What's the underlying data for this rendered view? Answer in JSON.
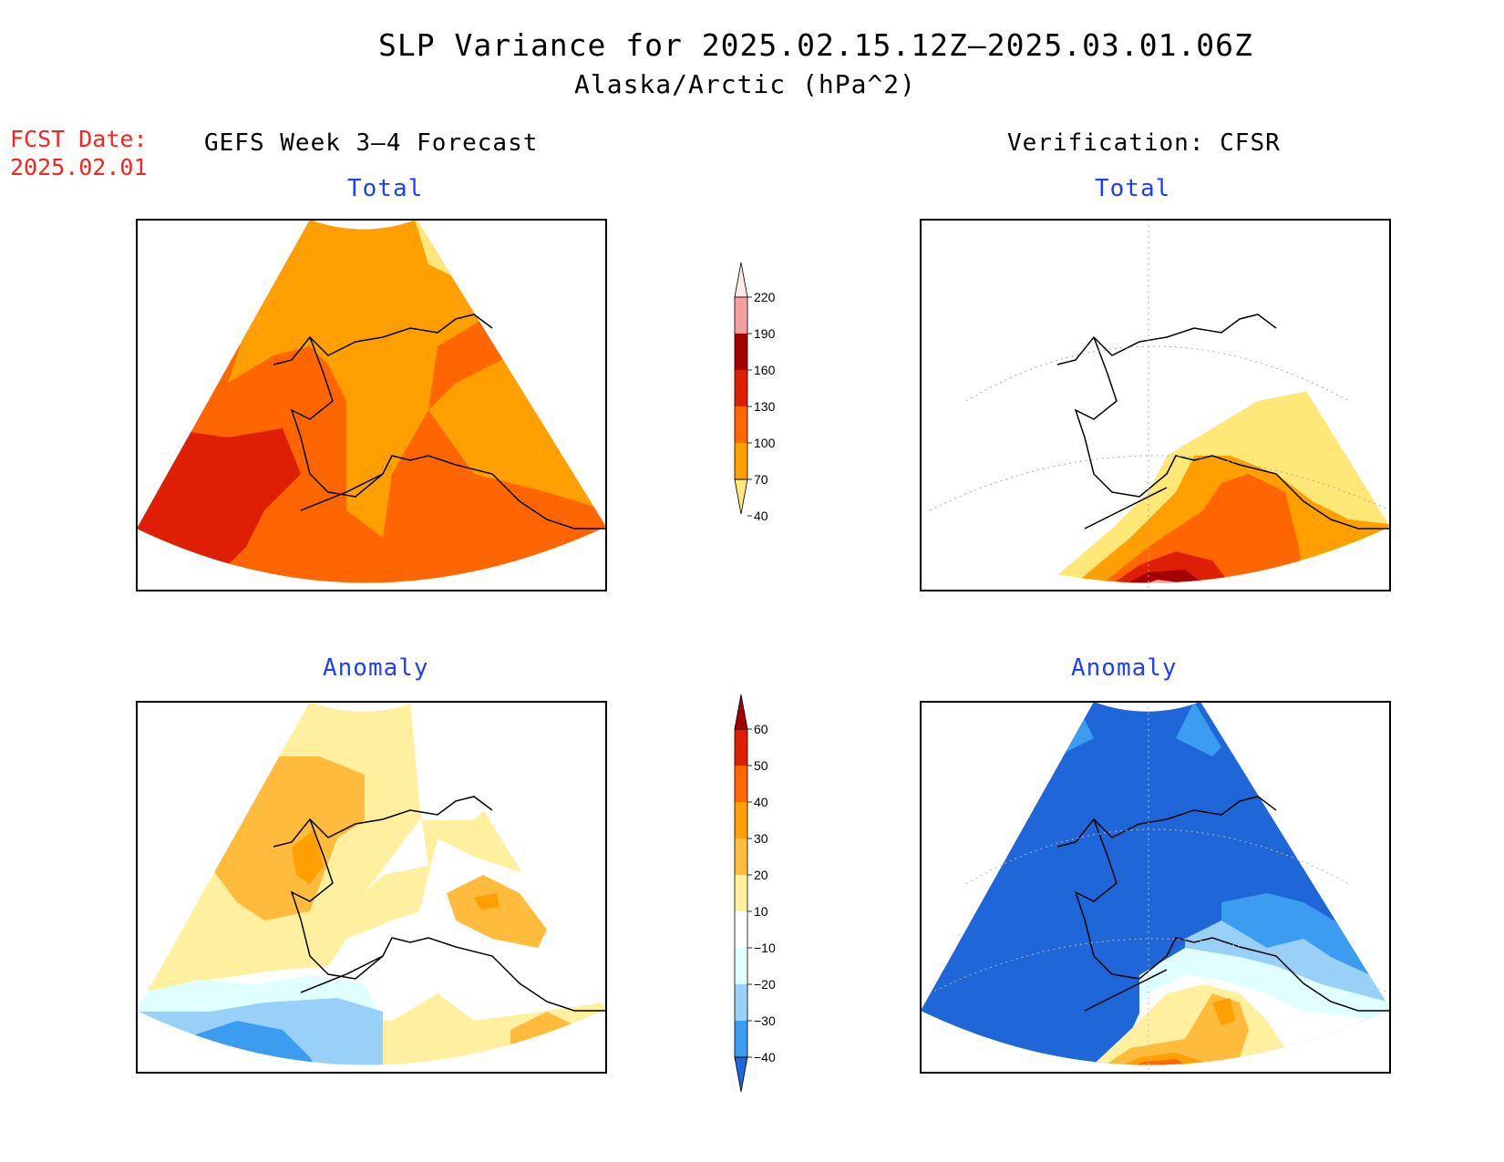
{
  "title": "SLP Variance for 2025.02.15.12Z–2025.03.01.06Z",
  "subtitle": "Alaska/Arctic (hPa^2)",
  "fcst_date_label": "FCST Date:",
  "fcst_date_value": "2025.02.01",
  "left_column_title": "GEFS Week 3–4 Forecast",
  "right_column_title": "Verification: CFSR",
  "panels": {
    "top_left": "Total",
    "top_right": "Total",
    "bottom_left": "Anomaly",
    "bottom_right": "Anomaly"
  },
  "colorbar_total": {
    "ticks": [
      "220",
      "190",
      "160",
      "130",
      "100",
      "70",
      "40"
    ],
    "colors": [
      "#fde9e6",
      "#f2a0a0",
      "#a50000",
      "#de1f05",
      "#ff6600",
      "#ffa000",
      "#ffe778"
    ]
  },
  "colorbar_anomaly": {
    "ticks": [
      "60",
      "50",
      "40",
      "30",
      "20",
      "10",
      "−10",
      "−20",
      "−30",
      "−40"
    ],
    "colors": [
      "#a50000",
      "#de1f05",
      "#ff6600",
      "#ffa000",
      "#ffbb3c",
      "#fff0a0",
      "#ffffff",
      "#e0ffff",
      "#99d0f8",
      "#3c9cf0",
      "#1f66d8"
    ]
  },
  "colors": {
    "title_text": "#000000",
    "fcst_text": "#ff2020",
    "panel_title": "#1f3fff"
  }
}
